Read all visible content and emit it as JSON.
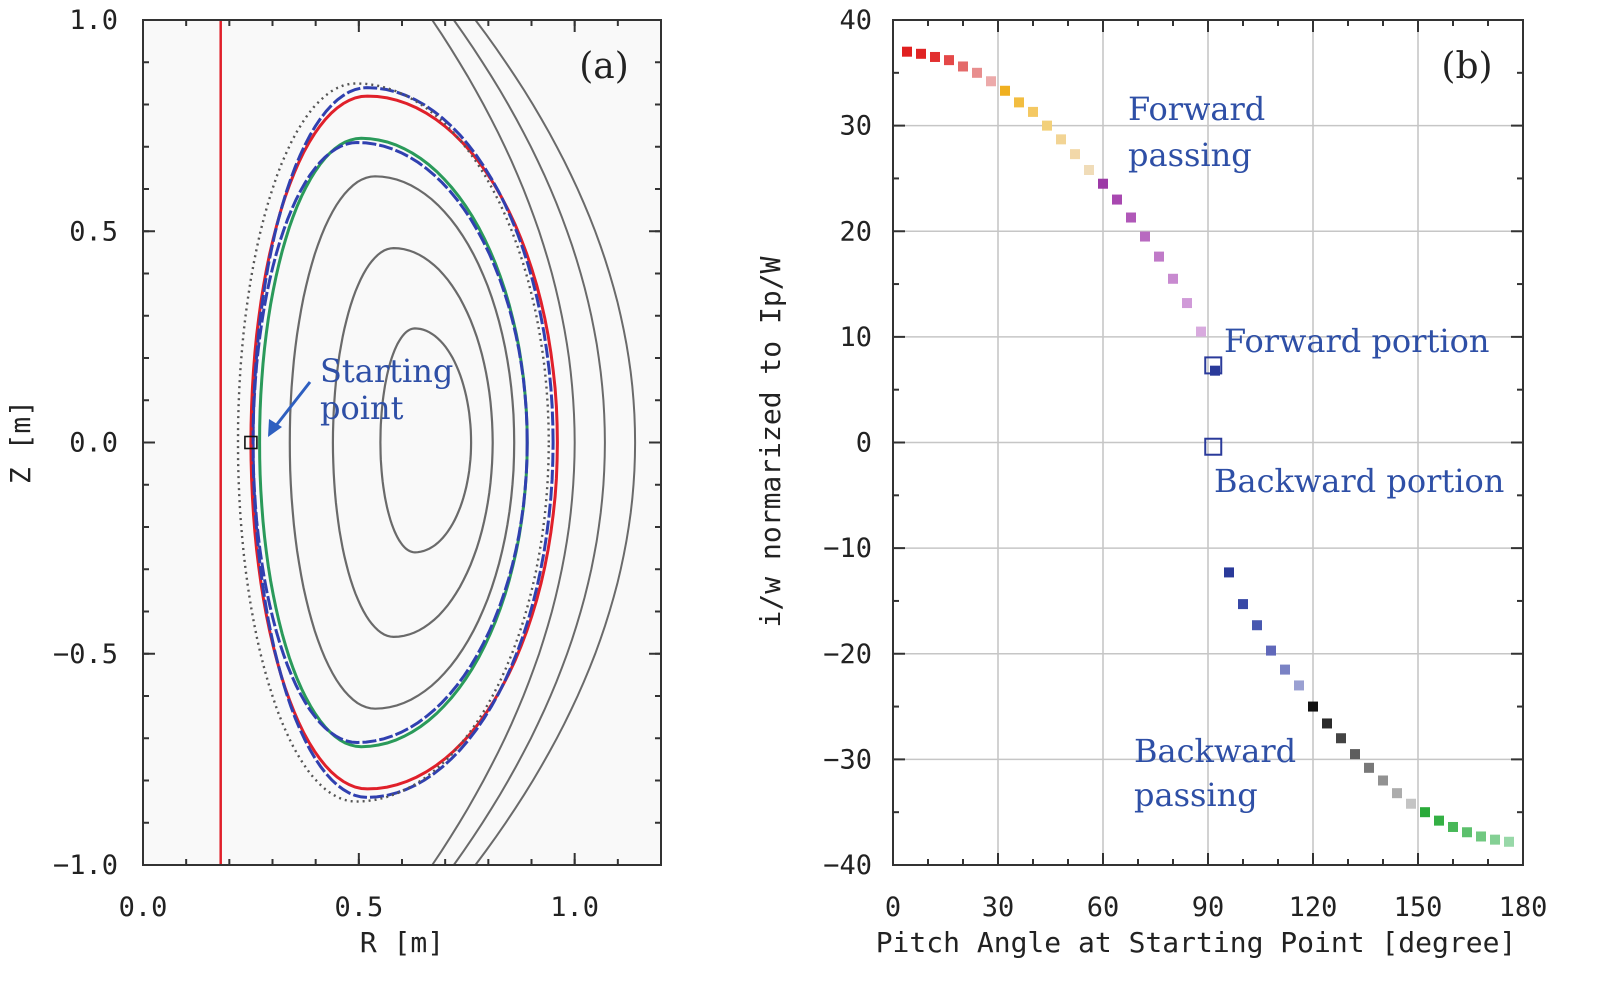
{
  "panels": {
    "a": {
      "label": "(a)",
      "xlabel": "R [m]",
      "ylabel": "Z [m]",
      "xlim": [
        0.0,
        1.2
      ],
      "ylim": [
        -1.0,
        1.0
      ],
      "xticks": [
        {
          "v": 0.0,
          "t": "0.0"
        },
        {
          "v": 0.5,
          "t": "0.5"
        },
        {
          "v": 1.0,
          "t": "1.0"
        }
      ],
      "yticks": [
        {
          "v": 1.0,
          "t": "1.0"
        },
        {
          "v": 0.5,
          "t": "0.5"
        },
        {
          "v": 0.0,
          "t": "0.0"
        },
        {
          "v": -0.5,
          "t": "−0.5"
        },
        {
          "v": -1.0,
          "t": "−1.0"
        }
      ],
      "annotation_line1": "Starting",
      "annotation_line2": "point"
    },
    "b": {
      "label": "(b)",
      "xlabel": "Pitch Angle at Starting Point [degree]",
      "ylabel": "i/w normarized to Ip/W",
      "xlim": [
        0,
        180
      ],
      "ylim": [
        -40,
        40
      ],
      "xticks": [
        {
          "v": 0,
          "t": "0"
        },
        {
          "v": 30,
          "t": "30"
        },
        {
          "v": 60,
          "t": "60"
        },
        {
          "v": 90,
          "t": "90"
        },
        {
          "v": 120,
          "t": "120"
        },
        {
          "v": 150,
          "t": "150"
        },
        {
          "v": 180,
          "t": "180"
        }
      ],
      "yticks": [
        {
          "v": 40,
          "t": "40"
        },
        {
          "v": 30,
          "t": "30"
        },
        {
          "v": 20,
          "t": "20"
        },
        {
          "v": 10,
          "t": "10"
        },
        {
          "v": 0,
          "t": "0"
        },
        {
          "v": -10,
          "t": "−10"
        },
        {
          "v": -20,
          "t": "−20"
        },
        {
          "v": -30,
          "t": "−30"
        },
        {
          "v": -40,
          "t": "−40"
        }
      ],
      "annotations": {
        "forward_passing_1": "Forward",
        "forward_passing_2": "passing",
        "forward_portion": "Forward  portion",
        "backward_portion": "Backward  portion",
        "backward_passing_1": "Backward",
        "backward_passing_2": "passing"
      }
    }
  },
  "chart_data": [
    {
      "type": "line",
      "panel": "(a)",
      "xlabel": "R [m]",
      "ylabel": "Z [m]",
      "xlim": [
        0.0,
        1.2
      ],
      "ylim": [
        -1.0,
        1.0
      ],
      "grid": false,
      "flux_surfaces": [
        {
          "r_in": 0.55,
          "r_out": 0.76,
          "z_top": 0.27,
          "z_bot": -0.26,
          "color": "#6a6a6a"
        },
        {
          "r_in": 0.44,
          "r_out": 0.81,
          "z_top": 0.46,
          "z_bot": -0.46,
          "color": "#6a6a6a"
        },
        {
          "r_in": 0.34,
          "r_out": 0.86,
          "z_top": 0.63,
          "z_bot": -0.63,
          "color": "#6a6a6a"
        },
        {
          "r_in": 0.27,
          "r_out": 0.89,
          "z_top": 0.72,
          "z_bot": -0.72,
          "color": "#2a9a5a"
        },
        {
          "r_in": 0.255,
          "r_out": 0.89,
          "z_top": 0.71,
          "z_bot": -0.71,
          "color": "#3040b0"
        },
        {
          "r_in": 0.25,
          "r_out": 0.96,
          "z_top": 0.82,
          "z_bot": -0.82,
          "color": "#e0202a"
        },
        {
          "r_in": 0.255,
          "r_out": 0.95,
          "z_top": 0.84,
          "z_bot": -0.84,
          "color": "#3040b0"
        },
        {
          "r_in": 0.22,
          "r_out": 0.94,
          "z_top": 0.85,
          "z_bot": -0.85,
          "color": "#555555"
        }
      ],
      "open_field_lines": [
        {
          "r_apex": 1.0,
          "color": "#6a6a6a"
        },
        {
          "r_apex": 1.07,
          "color": "#6a6a6a"
        },
        {
          "r_apex": 1.14,
          "color": "#6a6a6a"
        }
      ],
      "wall_line": {
        "r": 0.18,
        "color": "#e0202a"
      },
      "starting_point": {
        "r": 0.25,
        "z": 0.0
      }
    },
    {
      "type": "scatter",
      "panel": "(b)",
      "xlabel": "Pitch Angle at Starting Point [degree]",
      "ylabel": "i/w normarized to Ip/W",
      "xlim": [
        0,
        180
      ],
      "ylim": [
        -40,
        40
      ],
      "grid": true,
      "series": [
        {
          "points": [
            {
              "x": 4,
              "y": 37.0,
              "color": "#e02020"
            },
            {
              "x": 8,
              "y": 36.8,
              "color": "#e02424"
            },
            {
              "x": 12,
              "y": 36.5,
              "color": "#e23030"
            },
            {
              "x": 16,
              "y": 36.2,
              "color": "#e44848"
            },
            {
              "x": 20,
              "y": 35.6,
              "color": "#e46a6a"
            },
            {
              "x": 24,
              "y": 35.0,
              "color": "#e88e8e"
            },
            {
              "x": 28,
              "y": 34.2,
              "color": "#ecaaaa"
            },
            {
              "x": 32,
              "y": 33.3,
              "color": "#f0b020"
            },
            {
              "x": 36,
              "y": 32.2,
              "color": "#f2bd40"
            },
            {
              "x": 40,
              "y": 31.3,
              "color": "#f4c862"
            },
            {
              "x": 44,
              "y": 30.0,
              "color": "#f2d07a"
            },
            {
              "x": 48,
              "y": 28.7,
              "color": "#f2d494"
            },
            {
              "x": 52,
              "y": 27.3,
              "color": "#f2d8a8"
            },
            {
              "x": 56,
              "y": 25.8,
              "color": "#f0dcb8"
            },
            {
              "x": 60,
              "y": 24.5,
              "color": "#9c3aa6"
            },
            {
              "x": 64,
              "y": 23.0,
              "color": "#a848b0"
            },
            {
              "x": 68,
              "y": 21.3,
              "color": "#b058b8"
            },
            {
              "x": 72,
              "y": 19.5,
              "color": "#b86ac0"
            },
            {
              "x": 76,
              "y": 17.6,
              "color": "#c07ac8"
            },
            {
              "x": 80,
              "y": 15.5,
              "color": "#c88ad0"
            },
            {
              "x": 84,
              "y": 13.2,
              "color": "#d09ad8"
            },
            {
              "x": 88,
              "y": 10.5,
              "color": "#d8aade"
            },
            {
              "x": 92,
              "y": 6.8,
              "color": "#2a3a9a"
            },
            {
              "x": 96,
              "y": -12.3,
              "color": "#2a3a9a"
            },
            {
              "x": 100,
              "y": -15.3,
              "color": "#3848a6"
            },
            {
              "x": 104,
              "y": -17.3,
              "color": "#4858b0"
            },
            {
              "x": 108,
              "y": -19.7,
              "color": "#6068ba"
            },
            {
              "x": 112,
              "y": -21.5,
              "color": "#7a82c4"
            },
            {
              "x": 116,
              "y": -23.0,
              "color": "#9aa0d2"
            },
            {
              "x": 120,
              "y": -25.0,
              "color": "#111111"
            },
            {
              "x": 124,
              "y": -26.6,
              "color": "#2a2a2a"
            },
            {
              "x": 128,
              "y": -28.0,
              "color": "#444444"
            },
            {
              "x": 132,
              "y": -29.5,
              "color": "#5e5e5e"
            },
            {
              "x": 136,
              "y": -30.8,
              "color": "#787878"
            },
            {
              "x": 140,
              "y": -32.0,
              "color": "#929292"
            },
            {
              "x": 144,
              "y": -33.2,
              "color": "#acacac"
            },
            {
              "x": 148,
              "y": -34.2,
              "color": "#c4c4c4"
            },
            {
              "x": 152,
              "y": -35.0,
              "color": "#2aaa3a"
            },
            {
              "x": 156,
              "y": -35.8,
              "color": "#34b044"
            },
            {
              "x": 160,
              "y": -36.4,
              "color": "#48b858"
            },
            {
              "x": 164,
              "y": -36.9,
              "color": "#5cc06c"
            },
            {
              "x": 168,
              "y": -37.3,
              "color": "#70c880"
            },
            {
              "x": 172,
              "y": -37.6,
              "color": "#84d094"
            },
            {
              "x": 176,
              "y": -37.8,
              "color": "#98d8a8"
            }
          ]
        }
      ],
      "open_markers": [
        {
          "x": 91.5,
          "y": 7.3,
          "color": "#2a3a9a"
        },
        {
          "x": 91.5,
          "y": -0.4,
          "color": "#2a3a9a"
        }
      ]
    }
  ]
}
